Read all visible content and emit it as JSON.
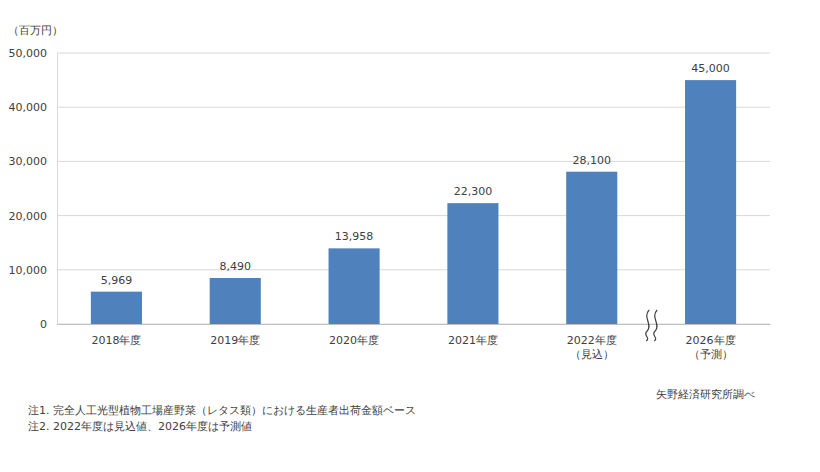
{
  "chart_data": {
    "type": "bar",
    "y_label": "（百万円）",
    "categories": [
      "2018年度",
      "2019年度",
      "2020年度",
      "2021年度",
      "2022年度\n（見込）",
      "2026年度\n（予測）"
    ],
    "values": [
      5969,
      8490,
      13958,
      22300,
      28100,
      45000
    ],
    "value_labels": [
      "5,969",
      "8,490",
      "13,958",
      "22,300",
      "28,100",
      "45,000"
    ],
    "data_labels": true,
    "color": "#4f81bd",
    "ylim": [
      0,
      50000
    ],
    "yticks": [
      0,
      {
        "value": 10000,
        "label": "10,000"
      },
      {
        "value": 20000,
        "label": "20,000"
      },
      {
        "value": 30000,
        "label": "30,000"
      },
      {
        "value": 40000,
        "label": "40,000"
      },
      {
        "value": 50000,
        "label": "50,000"
      }
    ],
    "grid": true,
    "source": "矢野経済研究所調べ",
    "notes": [
      "注1.  完全人工光型植物工場産野菜（レタス類）における生産者出荷金額ベース",
      "注2.  2022年度は見込値、2026年度は予測値"
    ]
  }
}
